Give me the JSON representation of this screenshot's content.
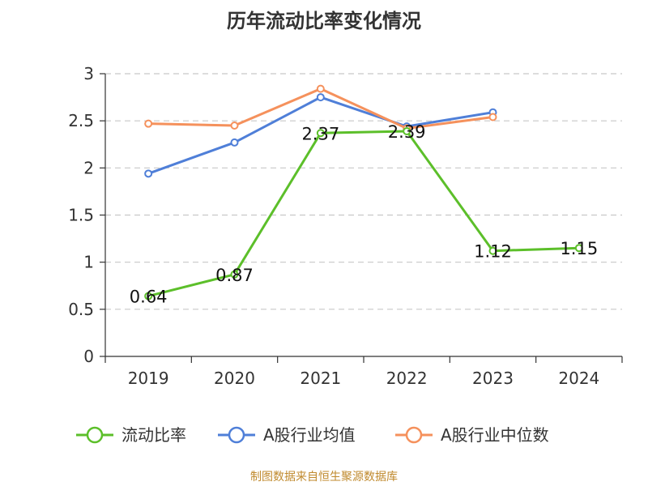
{
  "chart_data": {
    "type": "line",
    "title": "历年流动比率变化情况",
    "categories": [
      "2019",
      "2020",
      "2021",
      "2022",
      "2023",
      "2024"
    ],
    "ylim": [
      0,
      3
    ],
    "yticks": [
      "0",
      "0.5",
      "1",
      "1.5",
      "2",
      "2.5",
      "3"
    ],
    "grid": true,
    "legend_position": "bottom",
    "series": [
      {
        "name": "流动比率",
        "color": "#5cbf2a",
        "values": [
          0.64,
          0.87,
          2.37,
          2.39,
          1.12,
          1.15
        ],
        "labels": [
          "0.64",
          "0.87",
          "2.37",
          "2.39",
          "1.12",
          "1.15"
        ]
      },
      {
        "name": "A股行业均值",
        "color": "#4f7fd8",
        "values": [
          1.94,
          2.27,
          2.75,
          2.44,
          2.59,
          null
        ]
      },
      {
        "name": "A股行业中位数",
        "color": "#f5915c",
        "values": [
          2.47,
          2.45,
          2.84,
          2.42,
          2.54,
          null
        ]
      }
    ],
    "source": "制图数据来自恒生聚源数据库",
    "source_color": "#c08a2e"
  }
}
